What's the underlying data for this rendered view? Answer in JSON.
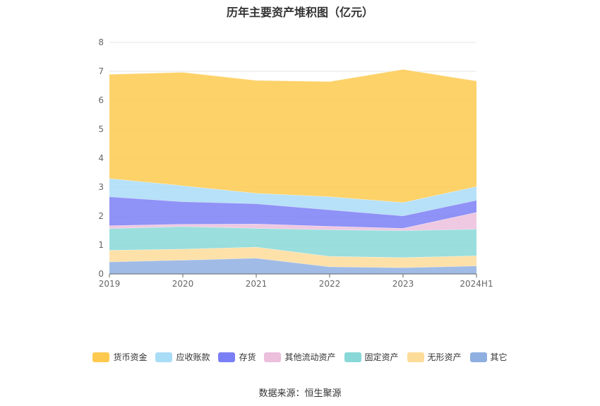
{
  "chart_data": {
    "type": "area",
    "stacked": true,
    "title": "历年主要资产堆积图（亿元）",
    "categories": [
      "2019",
      "2020",
      "2021",
      "2022",
      "2023",
      "2024H1"
    ],
    "ylim": [
      0,
      8
    ],
    "yticks": [
      "0",
      "1",
      "2",
      "3",
      "4",
      "5",
      "6",
      "7",
      "8"
    ],
    "grid": true,
    "legend_position": "bottom",
    "series": [
      {
        "name": "其它",
        "color": "#8fafe0",
        "values": [
          0.42,
          0.48,
          0.55,
          0.25,
          0.22,
          0.28
        ]
      },
      {
        "name": "无形资产",
        "color": "#fddc9a",
        "values": [
          0.4,
          0.38,
          0.38,
          0.36,
          0.35,
          0.35
        ]
      },
      {
        "name": "固定资产",
        "color": "#88d8d8",
        "values": [
          0.75,
          0.78,
          0.65,
          0.92,
          0.93,
          0.92
        ]
      },
      {
        "name": "其他流动资产",
        "color": "#ecbfdd",
        "values": [
          0.1,
          0.08,
          0.15,
          0.12,
          0.08,
          0.58
        ]
      },
      {
        "name": "存货",
        "color": "#7b7ff5",
        "values": [
          1.0,
          0.78,
          0.7,
          0.57,
          0.43,
          0.42
        ]
      },
      {
        "name": "应收账款",
        "color": "#a9dcf7",
        "values": [
          0.63,
          0.55,
          0.36,
          0.45,
          0.46,
          0.47
        ]
      },
      {
        "name": "货币资金",
        "color": "#fdca4f",
        "values": [
          3.6,
          3.92,
          3.9,
          3.98,
          4.6,
          3.65
        ]
      }
    ]
  },
  "legend_order": [
    "货币资金",
    "应收账款",
    "存货",
    "其他流动资产",
    "固定资产",
    "无形资产",
    "其它"
  ],
  "source": "数据来源：恒生聚源"
}
